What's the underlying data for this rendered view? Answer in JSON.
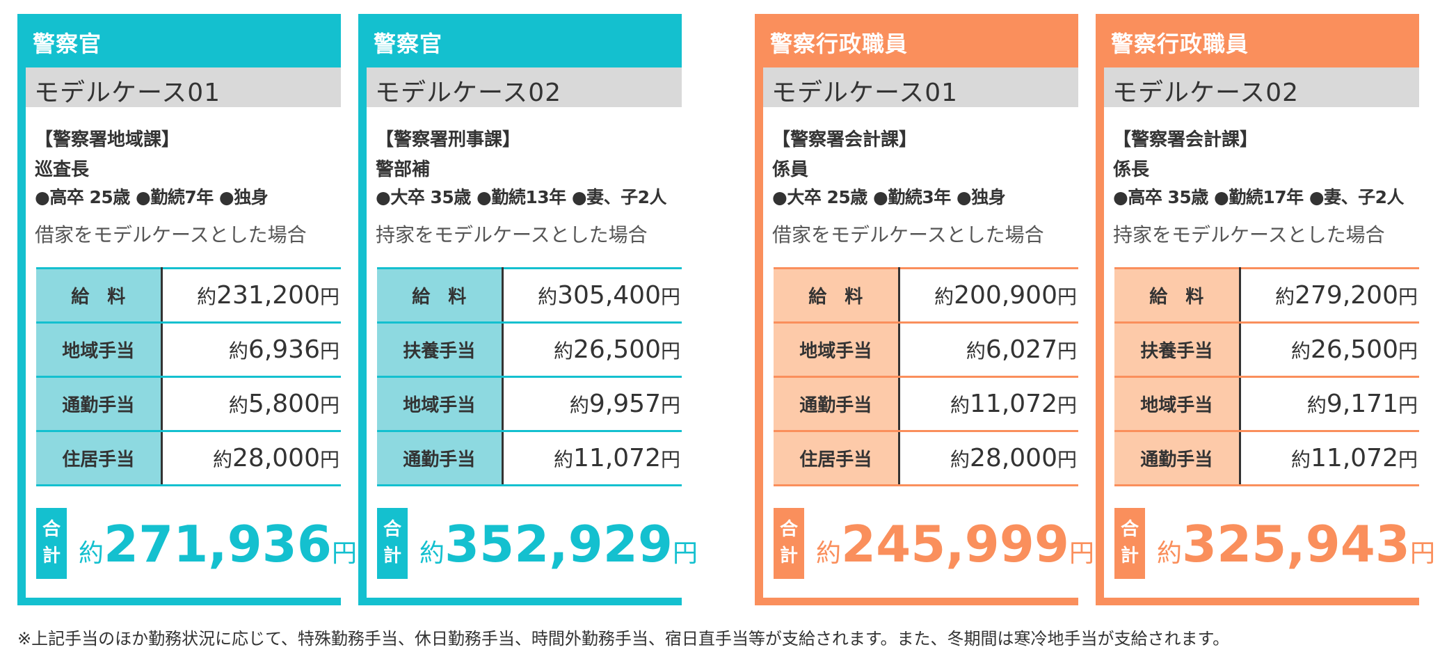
{
  "cards": [
    {
      "header": "警察官",
      "case": "モデルケース01",
      "dept": "【警察署地域課】",
      "rank": "巡査長",
      "profile": "●高卒 25歳 ●勤続7年 ●独身",
      "note": "借家をモデルケースとした場合",
      "rows": [
        {
          "label": "給　料",
          "prefix": "約",
          "value": "231,200",
          "unit": "円"
        },
        {
          "label": "地域手当",
          "prefix": "約",
          "value": "6,936",
          "unit": "円"
        },
        {
          "label": "通勤手当",
          "prefix": "約",
          "value": "5,800",
          "unit": "円"
        },
        {
          "label": "住居手当",
          "prefix": "約",
          "value": "28,000",
          "unit": "円"
        }
      ],
      "total": {
        "tag": "合計",
        "prefix": "約",
        "value": "271,936",
        "unit": "円"
      }
    },
    {
      "header": "警察官",
      "case": "モデルケース02",
      "dept": "【警察署刑事課】",
      "rank": "警部補",
      "profile": "●大卒 35歳 ●勤続13年 ●妻、子2人",
      "note": "持家をモデルケースとした場合",
      "rows": [
        {
          "label": "給　料",
          "prefix": "約",
          "value": "305,400",
          "unit": "円"
        },
        {
          "label": "扶養手当",
          "prefix": "約",
          "value": "26,500",
          "unit": "円"
        },
        {
          "label": "地域手当",
          "prefix": "約",
          "value": "9,957",
          "unit": "円"
        },
        {
          "label": "通勤手当",
          "prefix": "約",
          "value": "11,072",
          "unit": "円"
        }
      ],
      "total": {
        "tag": "合計",
        "prefix": "約",
        "value": "352,929",
        "unit": "円"
      }
    },
    {
      "header": "警察行政職員",
      "case": "モデルケース01",
      "dept": "【警察署会計課】",
      "rank": "係員",
      "profile": "●大卒 25歳 ●勤続3年 ●独身",
      "note": "借家をモデルケースとした場合",
      "rows": [
        {
          "label": "給　料",
          "prefix": "約",
          "value": "200,900",
          "unit": "円"
        },
        {
          "label": "地域手当",
          "prefix": "約",
          "value": "6,027",
          "unit": "円"
        },
        {
          "label": "通勤手当",
          "prefix": "約",
          "value": "11,072",
          "unit": "円"
        },
        {
          "label": "住居手当",
          "prefix": "約",
          "value": "28,000",
          "unit": "円"
        }
      ],
      "total": {
        "tag": "合計",
        "prefix": "約",
        "value": "245,999",
        "unit": "円"
      }
    },
    {
      "header": "警察行政職員",
      "case": "モデルケース02",
      "dept": "【警察署会計課】",
      "rank": "係長",
      "profile": "●高卒 35歳 ●勤続17年 ●妻、子2人",
      "note": "持家をモデルケースとした場合",
      "rows": [
        {
          "label": "給　料",
          "prefix": "約",
          "value": "279,200",
          "unit": "円"
        },
        {
          "label": "扶養手当",
          "prefix": "約",
          "value": "26,500",
          "unit": "円"
        },
        {
          "label": "地域手当",
          "prefix": "約",
          "value": "9,171",
          "unit": "円"
        },
        {
          "label": "通勤手当",
          "prefix": "約",
          "value": "11,072",
          "unit": "円"
        }
      ],
      "total": {
        "tag": "合計",
        "prefix": "約",
        "value": "325,943",
        "unit": "円"
      }
    }
  ],
  "colors": {
    "police_officer": "#14c0cf",
    "police_officer_light": "#8dd9e0",
    "administrative_staff": "#fa8f5c",
    "administrative_staff_light": "#fdcaa9",
    "case_band": "#d9d9d9"
  },
  "footnote": "※上記手当のほか勤務状況に応じて、特殊勤務手当、休日勤務手当、時間外勤務手当、宿日直手当等が支給されます。また、冬期間は寒冷地手当が支給されます。"
}
